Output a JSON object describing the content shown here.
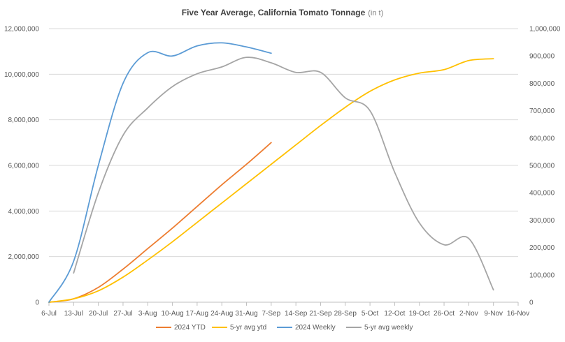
{
  "chart_data": {
    "type": "line",
    "title": "Five Year Average, California Tomato Tonnage",
    "subtitle": "(in t)",
    "x_tick_labels": [
      "6-Jul",
      "13-Jul",
      "20-Jul",
      "27-Jul",
      "3-Aug",
      "10-Aug",
      "17-Aug",
      "24-Aug",
      "31-Aug",
      "7-Sep",
      "14-Sep",
      "21-Sep",
      "28-Sep",
      "5-Oct",
      "12-Oct",
      "19-Oct",
      "26-Oct",
      "2-Nov",
      "9-Nov",
      "16-Nov"
    ],
    "y_left": {
      "range": [
        0,
        12000000
      ],
      "ticks": [
        "0",
        "2,000,000",
        "4,000,000",
        "6,000,000",
        "8,000,000",
        "10,000,000",
        "12,000,000"
      ]
    },
    "y_right": {
      "range": [
        0,
        1000000
      ],
      "ticks": [
        "0",
        "100,000",
        "200,000",
        "300,000",
        "400,000",
        "500,000",
        "600,000",
        "700,000",
        "800,000",
        "900,000",
        "1,000,000"
      ]
    },
    "grid": "horizontal",
    "legend_position": "bottom",
    "series": [
      {
        "name": "2024 YTD",
        "axis": "left",
        "color": "#ED7D31",
        "x": [
          "6-Jul",
          "13-Jul",
          "20-Jul",
          "27-Jul",
          "3-Aug",
          "10-Aug",
          "17-Aug",
          "24-Aug",
          "31-Aug",
          "7-Sep"
        ],
        "values": [
          0,
          150000,
          650000,
          1450000,
          2350000,
          3250000,
          4200000,
          5150000,
          6050000,
          7000000
        ]
      },
      {
        "name": "5-yr avg ytd",
        "axis": "left",
        "color": "#FFC000",
        "x": [
          "6-Jul",
          "13-Jul",
          "20-Jul",
          "27-Jul",
          "3-Aug",
          "10-Aug",
          "17-Aug",
          "24-Aug",
          "31-Aug",
          "7-Sep",
          "14-Sep",
          "21-Sep",
          "28-Sep",
          "5-Oct",
          "12-Oct",
          "19-Oct",
          "26-Oct",
          "2-Nov",
          "9-Nov"
        ],
        "values": [
          0,
          150000,
          500000,
          1100000,
          1850000,
          2650000,
          3500000,
          4350000,
          5200000,
          6050000,
          6900000,
          7750000,
          8550000,
          9250000,
          9750000,
          10050000,
          10200000,
          10600000,
          10680000
        ]
      },
      {
        "name": "2024 Weekly",
        "axis": "right",
        "color": "#5B9BD5",
        "x": [
          "6-Jul",
          "13-Jul",
          "20-Jul",
          "27-Jul",
          "3-Aug",
          "10-Aug",
          "17-Aug",
          "24-Aug",
          "31-Aug",
          "7-Sep"
        ],
        "values": [
          0,
          150000,
          500000,
          800000,
          912000,
          900000,
          937000,
          948000,
          933000,
          910000
        ]
      },
      {
        "name": "5-yr avg weekly",
        "axis": "right",
        "color": "#A5A5A5",
        "x": [
          "13-Jul",
          "20-Jul",
          "27-Jul",
          "3-Aug",
          "10-Aug",
          "17-Aug",
          "24-Aug",
          "31-Aug",
          "7-Sep",
          "14-Sep",
          "21-Sep",
          "28-Sep",
          "5-Oct",
          "12-Oct",
          "19-Oct",
          "26-Oct",
          "2-Nov",
          "9-Nov"
        ],
        "values": [
          107000,
          400000,
          610000,
          710000,
          788000,
          835000,
          860000,
          895000,
          875000,
          840000,
          840000,
          747000,
          700000,
          475000,
          290000,
          210000,
          233000,
          45000
        ]
      }
    ]
  }
}
